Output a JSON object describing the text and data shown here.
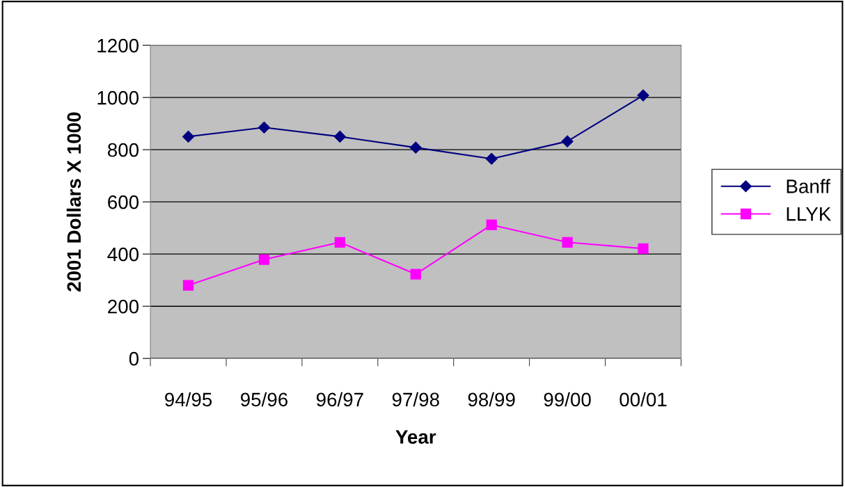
{
  "chart_data": {
    "type": "line",
    "xlabel": "Year",
    "ylabel": "2001 Dollars X 1000",
    "categories": [
      "94/95",
      "95/96",
      "96/97",
      "97/98",
      "98/99",
      "99/00",
      "00/01"
    ],
    "series": [
      {
        "name": "Banff",
        "color": "#000080",
        "marker": "diamond",
        "values": [
          850,
          885,
          850,
          808,
          765,
          832,
          1008
        ]
      },
      {
        "name": "LLYK",
        "color": "#ff00ff",
        "marker": "square",
        "values": [
          280,
          379,
          445,
          323,
          512,
          445,
          421
        ]
      }
    ],
    "ylim": [
      0,
      1200
    ],
    "yticks": [
      0,
      200,
      400,
      600,
      800,
      1000,
      1200
    ],
    "grid": "y",
    "legend": "right",
    "line_style": "solid"
  }
}
